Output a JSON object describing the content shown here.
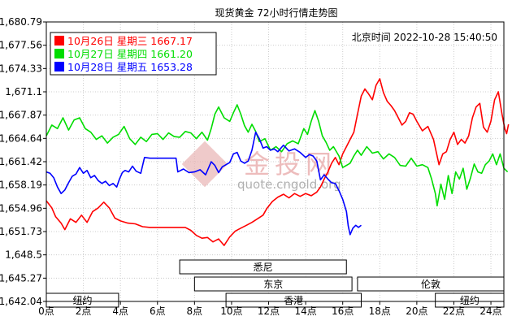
{
  "chart_data": {
    "type": "line",
    "title": "现货黄金 72小时行情走势图",
    "timestamp": "北京时间  2022-10-28 15:40:50",
    "watermark": {
      "brand": "金投网",
      "url": "quote.cngold.org"
    },
    "ylim": [
      1642.04,
      1680.79
    ],
    "yticks": [
      "1,680.79",
      "1,677.56",
      "1,674.33",
      "1,671.1",
      "1,667.87",
      "1,664.64",
      "1,661.42",
      "1,658.19",
      "1,654.96",
      "1,651.73",
      "1,648.5",
      "1,645.27",
      "1,642.04"
    ],
    "xlim": [
      0,
      24.7
    ],
    "xticks": [
      {
        "x": 0,
        "label": "0点"
      },
      {
        "x": 2,
        "label": "2点"
      },
      {
        "x": 4,
        "label": "4点"
      },
      {
        "x": 6,
        "label": "6点"
      },
      {
        "x": 8,
        "label": "8点"
      },
      {
        "x": 10,
        "label": "10点"
      },
      {
        "x": 12,
        "label": "12点"
      },
      {
        "x": 14,
        "label": "14点"
      },
      {
        "x": 16,
        "label": "16点"
      },
      {
        "x": 18,
        "label": "18点"
      },
      {
        "x": 20,
        "label": "20点"
      },
      {
        "x": 22,
        "label": "22点"
      },
      {
        "x": 24,
        "label": "24点"
      }
    ],
    "grid": true,
    "legend_position": "top-left",
    "legend": [
      {
        "label": "10月26日 星期三 1667.17",
        "color": "#ff0000"
      },
      {
        "label": "10月27日 星期四 1661.20",
        "color": "#00dd00"
      },
      {
        "label": "10月28日 星期五 1653.28",
        "color": "#0000ff"
      }
    ],
    "series": [
      {
        "name": "10月26日 星期三",
        "color": "#ff0000",
        "points": [
          [
            0,
            1656.0
          ],
          [
            0.3,
            1655.0
          ],
          [
            0.5,
            1653.8
          ],
          [
            0.8,
            1652.9
          ],
          [
            1.0,
            1652.0
          ],
          [
            1.3,
            1653.5
          ],
          [
            1.6,
            1653.0
          ],
          [
            1.9,
            1654.0
          ],
          [
            2.2,
            1653.0
          ],
          [
            2.5,
            1654.5
          ],
          [
            2.8,
            1655.0
          ],
          [
            3.1,
            1655.8
          ],
          [
            3.4,
            1655.0
          ],
          [
            3.7,
            1653.6
          ],
          [
            4.0,
            1653.2
          ],
          [
            4.4,
            1652.9
          ],
          [
            4.8,
            1652.8
          ],
          [
            5.2,
            1652.4
          ],
          [
            5.6,
            1652.3
          ],
          [
            6.0,
            1652.3
          ],
          [
            6.5,
            1652.3
          ],
          [
            7.0,
            1652.3
          ],
          [
            7.5,
            1652.3
          ],
          [
            7.8,
            1651.9
          ],
          [
            8.1,
            1651.2
          ],
          [
            8.4,
            1650.8
          ],
          [
            8.7,
            1650.9
          ],
          [
            9.0,
            1650.3
          ],
          [
            9.3,
            1650.7
          ],
          [
            9.6,
            1649.8
          ],
          [
            9.9,
            1651.0
          ],
          [
            10.2,
            1651.8
          ],
          [
            10.5,
            1652.2
          ],
          [
            10.8,
            1652.6
          ],
          [
            11.1,
            1653.0
          ],
          [
            11.4,
            1653.5
          ],
          [
            11.7,
            1654.0
          ],
          [
            11.9,
            1654.9
          ],
          [
            12.2,
            1655.9
          ],
          [
            12.5,
            1656.5
          ],
          [
            12.8,
            1656.9
          ],
          [
            13.1,
            1656.4
          ],
          [
            13.4,
            1657.0
          ],
          [
            13.7,
            1656.6
          ],
          [
            14.0,
            1657.0
          ],
          [
            14.3,
            1656.7
          ],
          [
            14.6,
            1657.2
          ],
          [
            14.8,
            1657.9
          ],
          [
            15.0,
            1659.0
          ],
          [
            15.2,
            1660.0
          ],
          [
            15.4,
            1661.2
          ],
          [
            15.6,
            1662.0
          ],
          [
            15.8,
            1661.0
          ],
          [
            16.0,
            1662.5
          ],
          [
            16.2,
            1663.5
          ],
          [
            16.4,
            1664.5
          ],
          [
            16.6,
            1665.5
          ],
          [
            16.8,
            1668.0
          ],
          [
            17.0,
            1670.5
          ],
          [
            17.2,
            1671.5
          ],
          [
            17.4,
            1670.8
          ],
          [
            17.6,
            1670.0
          ],
          [
            17.8,
            1672.0
          ],
          [
            18.0,
            1672.9
          ],
          [
            18.2,
            1671.0
          ],
          [
            18.4,
            1669.8
          ],
          [
            18.6,
            1669.2
          ],
          [
            18.8,
            1668.5
          ],
          [
            19.0,
            1667.5
          ],
          [
            19.2,
            1666.5
          ],
          [
            19.4,
            1667.0
          ],
          [
            19.6,
            1668.2
          ],
          [
            19.8,
            1668.0
          ],
          [
            20.0,
            1667.0
          ],
          [
            20.3,
            1665.7
          ],
          [
            20.6,
            1666.3
          ],
          [
            20.9,
            1664.5
          ],
          [
            21.2,
            1661.0
          ],
          [
            21.4,
            1662.5
          ],
          [
            21.6,
            1662.8
          ],
          [
            21.8,
            1664.5
          ],
          [
            22.0,
            1665.5
          ],
          [
            22.2,
            1663.8
          ],
          [
            22.4,
            1664.5
          ],
          [
            22.6,
            1664.0
          ],
          [
            22.8,
            1665.0
          ],
          [
            23.0,
            1667.5
          ],
          [
            23.2,
            1669.0
          ],
          [
            23.4,
            1669.5
          ],
          [
            23.6,
            1666.2
          ],
          [
            23.8,
            1665.5
          ],
          [
            24.0,
            1667.0
          ],
          [
            24.2,
            1670.0
          ],
          [
            24.4,
            1671.1
          ],
          [
            24.6,
            1668.0
          ],
          [
            24.75,
            1666.0
          ],
          [
            24.85,
            1665.3
          ],
          [
            24.95,
            1666.6
          ]
        ]
      },
      {
        "name": "10月27日 星期四",
        "color": "#00dd00",
        "points": [
          [
            0,
            1665.0
          ],
          [
            0.3,
            1666.5
          ],
          [
            0.6,
            1666.0
          ],
          [
            0.9,
            1667.5
          ],
          [
            1.2,
            1665.8
          ],
          [
            1.5,
            1667.2
          ],
          [
            1.8,
            1667.5
          ],
          [
            2.1,
            1666.0
          ],
          [
            2.4,
            1665.5
          ],
          [
            2.7,
            1664.5
          ],
          [
            3.0,
            1665.0
          ],
          [
            3.3,
            1664.0
          ],
          [
            3.6,
            1664.8
          ],
          [
            3.9,
            1665.2
          ],
          [
            4.2,
            1666.3
          ],
          [
            4.5,
            1664.6
          ],
          [
            4.8,
            1663.8
          ],
          [
            5.1,
            1664.8
          ],
          [
            5.4,
            1664.2
          ],
          [
            5.7,
            1665.2
          ],
          [
            6.0,
            1665.3
          ],
          [
            6.3,
            1664.5
          ],
          [
            6.6,
            1665.4
          ],
          [
            6.9,
            1664.9
          ],
          [
            7.2,
            1664.8
          ],
          [
            7.5,
            1665.6
          ],
          [
            7.8,
            1665.4
          ],
          [
            8.1,
            1664.6
          ],
          [
            8.4,
            1665.5
          ],
          [
            8.7,
            1664.4
          ],
          [
            8.9,
            1666.0
          ],
          [
            9.1,
            1668.0
          ],
          [
            9.3,
            1669.0
          ],
          [
            9.6,
            1667.5
          ],
          [
            9.9,
            1667.0
          ],
          [
            10.1,
            1668.2
          ],
          [
            10.3,
            1669.3
          ],
          [
            10.5,
            1668.0
          ],
          [
            10.7,
            1666.4
          ],
          [
            10.9,
            1665.5
          ],
          [
            11.1,
            1666.6
          ],
          [
            11.3,
            1665.6
          ],
          [
            11.5,
            1664.2
          ],
          [
            11.8,
            1664.6
          ],
          [
            12.1,
            1663.0
          ],
          [
            12.4,
            1663.5
          ],
          [
            12.7,
            1662.8
          ],
          [
            13.0,
            1663.9
          ],
          [
            13.3,
            1664.3
          ],
          [
            13.6,
            1663.9
          ],
          [
            13.9,
            1666.0
          ],
          [
            14.1,
            1665.2
          ],
          [
            14.3,
            1667.0
          ],
          [
            14.5,
            1668.5
          ],
          [
            14.7,
            1667.0
          ],
          [
            14.9,
            1665.0
          ],
          [
            15.1,
            1664.1
          ],
          [
            15.3,
            1663.0
          ],
          [
            15.5,
            1663.5
          ],
          [
            15.8,
            1662.2
          ],
          [
            16.0,
            1660.6
          ],
          [
            16.2,
            1660.9
          ],
          [
            16.4,
            1661.2
          ],
          [
            16.6,
            1662.2
          ],
          [
            16.8,
            1663.0
          ],
          [
            17.0,
            1662.3
          ],
          [
            17.3,
            1663.5
          ],
          [
            17.6,
            1662.6
          ],
          [
            17.9,
            1662.8
          ],
          [
            18.2,
            1661.8
          ],
          [
            18.5,
            1662.5
          ],
          [
            18.8,
            1662.0
          ],
          [
            19.1,
            1660.9
          ],
          [
            19.4,
            1660.8
          ],
          [
            19.7,
            1661.9
          ],
          [
            20.0,
            1660.8
          ],
          [
            20.3,
            1661.0
          ],
          [
            20.6,
            1660.6
          ],
          [
            20.8,
            1659.0
          ],
          [
            21.0,
            1657.0
          ],
          [
            21.1,
            1655.3
          ],
          [
            21.3,
            1658.3
          ],
          [
            21.5,
            1656.2
          ],
          [
            21.7,
            1659.5
          ],
          [
            21.9,
            1657.0
          ],
          [
            22.1,
            1660.0
          ],
          [
            22.3,
            1659.0
          ],
          [
            22.5,
            1660.5
          ],
          [
            22.7,
            1657.6
          ],
          [
            22.9,
            1659.2
          ],
          [
            23.1,
            1661.1
          ],
          [
            23.3,
            1660.0
          ],
          [
            23.5,
            1659.8
          ],
          [
            23.7,
            1661.0
          ],
          [
            23.9,
            1661.5
          ],
          [
            24.1,
            1662.5
          ],
          [
            24.3,
            1661.0
          ],
          [
            24.5,
            1662.5
          ],
          [
            24.7,
            1660.5
          ],
          [
            24.9,
            1660.0
          ]
        ]
      },
      {
        "name": "10月28日 星期五",
        "color": "#0000ff",
        "points": [
          [
            0,
            1660.0
          ],
          [
            0.2,
            1659.8
          ],
          [
            0.4,
            1659.2
          ],
          [
            0.6,
            1657.9
          ],
          [
            0.8,
            1657.0
          ],
          [
            1.0,
            1657.5
          ],
          [
            1.2,
            1658.5
          ],
          [
            1.4,
            1659.4
          ],
          [
            1.6,
            1659.7
          ],
          [
            1.8,
            1660.6
          ],
          [
            2.0,
            1659.8
          ],
          [
            2.2,
            1660.2
          ],
          [
            2.4,
            1659.2
          ],
          [
            2.6,
            1659.5
          ],
          [
            2.8,
            1658.8
          ],
          [
            3.0,
            1658.4
          ],
          [
            3.2,
            1658.7
          ],
          [
            3.4,
            1658.1
          ],
          [
            3.6,
            1658.4
          ],
          [
            3.8,
            1657.9
          ],
          [
            3.95,
            1659.0
          ],
          [
            4.1,
            1659.9
          ],
          [
            4.25,
            1660.2
          ],
          [
            4.45,
            1660.0
          ],
          [
            4.65,
            1660.8
          ],
          [
            4.85,
            1660.1
          ],
          [
            5.1,
            1659.8
          ],
          [
            5.3,
            1662.0
          ],
          [
            5.6,
            1661.9
          ],
          [
            5.9,
            1661.9
          ],
          [
            6.2,
            1661.9
          ],
          [
            6.6,
            1661.9
          ],
          [
            7.0,
            1661.9
          ],
          [
            7.1,
            1660.0
          ],
          [
            7.4,
            1660.4
          ],
          [
            7.7,
            1659.9
          ],
          [
            8.0,
            1660.0
          ],
          [
            8.3,
            1660.3
          ],
          [
            8.6,
            1659.6
          ],
          [
            8.9,
            1661.4
          ],
          [
            9.1,
            1660.9
          ],
          [
            9.3,
            1659.9
          ],
          [
            9.5,
            1660.7
          ],
          [
            9.7,
            1661.0
          ],
          [
            9.9,
            1661.3
          ],
          [
            10.1,
            1662.5
          ],
          [
            10.3,
            1662.7
          ],
          [
            10.5,
            1661.5
          ],
          [
            10.7,
            1661.2
          ],
          [
            10.9,
            1661.5
          ],
          [
            11.1,
            1663.0
          ],
          [
            11.3,
            1665.5
          ],
          [
            11.5,
            1664.6
          ],
          [
            11.7,
            1663.3
          ],
          [
            11.9,
            1663.5
          ],
          [
            12.1,
            1663.0
          ],
          [
            12.3,
            1663.2
          ],
          [
            12.5,
            1662.8
          ],
          [
            12.8,
            1663.7
          ],
          [
            13.1,
            1662.9
          ],
          [
            13.4,
            1663.2
          ],
          [
            13.7,
            1662.7
          ],
          [
            14.0,
            1662.0
          ],
          [
            14.2,
            1662.4
          ],
          [
            14.4,
            1662.2
          ],
          [
            14.6,
            1661.5
          ],
          [
            14.8,
            1658.9
          ],
          [
            15.0,
            1659.6
          ],
          [
            15.2,
            1659.0
          ],
          [
            15.4,
            1658.5
          ],
          [
            15.6,
            1658.4
          ],
          [
            15.8,
            1657.4
          ],
          [
            16.0,
            1656.2
          ],
          [
            16.2,
            1654.5
          ],
          [
            16.3,
            1652.5
          ],
          [
            16.4,
            1651.3
          ],
          [
            16.55,
            1652.2
          ],
          [
            16.7,
            1652.6
          ],
          [
            16.85,
            1652.3
          ],
          [
            17.0,
            1652.6
          ]
        ]
      }
    ],
    "sessions": [
      {
        "label": "悉尼",
        "start": 7.2,
        "end": 16.2,
        "row": 0
      },
      {
        "label": "东京",
        "start": 8.0,
        "end": 16.5,
        "row": 1
      },
      {
        "label": "伦敦",
        "start": 16.8,
        "end": 25.5,
        "row": 1
      },
      {
        "label": "纽约",
        "start": 0,
        "end": 3.9,
        "row": 2
      },
      {
        "label": "香港",
        "start": 9.7,
        "end": 17.0,
        "row": 2
      },
      {
        "label": "纽约",
        "start": 21.0,
        "end": 25.5,
        "row": 2
      }
    ]
  }
}
